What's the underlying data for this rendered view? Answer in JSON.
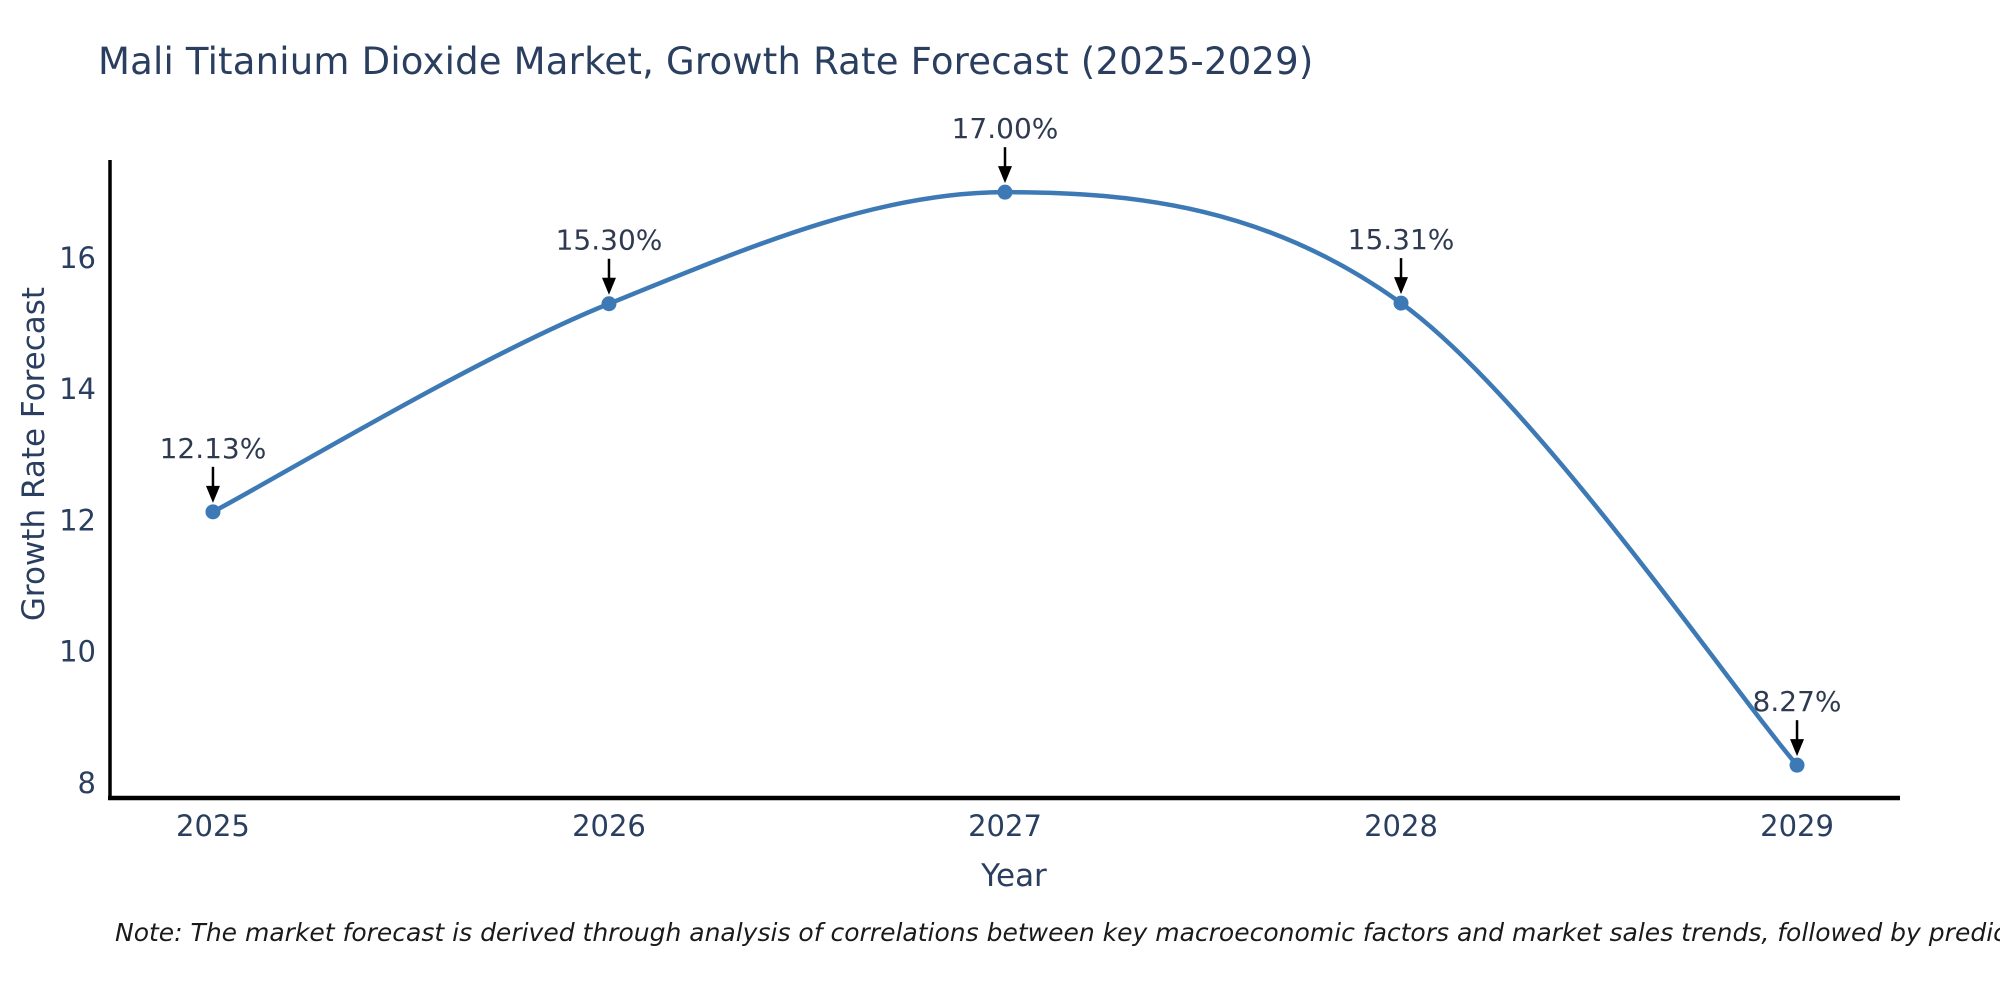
{
  "page": {
    "background_color": "#ffffff"
  },
  "note": "Note: The market forecast is derived through analysis of correlations between key macroeconomic factors and market sales trends, followed by predictive modeling to project future sales",
  "chart_data": {
    "type": "line",
    "title": "Mali Titanium Dioxide Market, Growth Rate Forecast (2025-2029)",
    "xlabel": "Year",
    "ylabel": "Growth Rate Forecast",
    "x": [
      2025,
      2026,
      2027,
      2028,
      2029
    ],
    "values": [
      12.13,
      15.3,
      17.0,
      15.31,
      8.27
    ],
    "point_labels": [
      "12.13%",
      "15.30%",
      "17.00%",
      "15.31%",
      "8.27%"
    ],
    "x_tick_labels": [
      "2025",
      "2026",
      "2027",
      "2028",
      "2029"
    ],
    "y_ticks": [
      8,
      10,
      12,
      14,
      16
    ],
    "xlim": [
      2024.74,
      2029.26
    ],
    "ylim": [
      7.77,
      17.49
    ],
    "grid": false,
    "legend": null,
    "smooth_curve": true,
    "colors": {
      "line": "#3d7ab5",
      "marker": "#3d7ab5",
      "annotation_text": "#2f3a50",
      "annotation_arrow": "#000000",
      "axis_line": "#000000",
      "tick_label": "#2a3f5f",
      "axis_title": "#2a3f5f",
      "title": "#2a3f5f"
    }
  }
}
